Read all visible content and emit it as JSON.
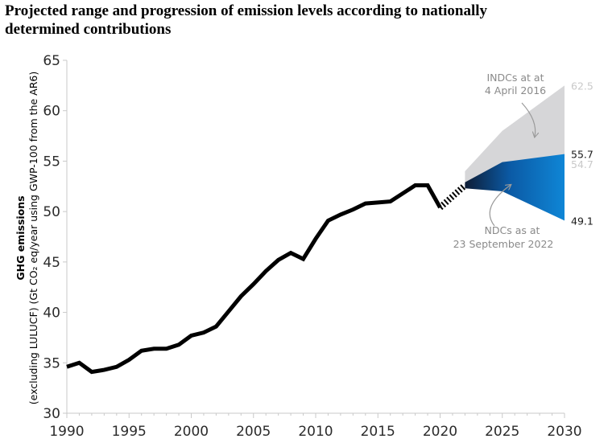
{
  "title": {
    "line1": "Projected range and progression of emission levels according to nationally",
    "line2": "determined contributions"
  },
  "colors": {
    "history": "#000000",
    "indc_range": "#d6d6d8",
    "ndc_dark": "#0e1d36",
    "ndc_mid": "#0b5aa5",
    "ndc_light": "#0f86d6",
    "axis": "#c9c9c9",
    "annotation": "#8a8a8a",
    "label_dark": "#1a1a1a",
    "label_light": "#c9c9c9"
  },
  "chart_data": {
    "type": "area",
    "title": "Projected range and progression of emission levels according to nationally determined contributions",
    "ylabel_line1": "GHG emissions",
    "ylabel_line2": "(excluding LULUCF) (Gt CO₂ eq/year using GWP-100 from the AR6)",
    "xlabel": "",
    "xlim": [
      1990,
      2030
    ],
    "ylim": [
      30,
      65
    ],
    "x_ticks": [
      "1990",
      "1995",
      "2000",
      "2005",
      "2010",
      "2015",
      "2020",
      "2025",
      "2030"
    ],
    "y_ticks": [
      "30",
      "35",
      "40",
      "45",
      "50",
      "55",
      "60",
      "65"
    ],
    "grid": false,
    "series": [
      {
        "type": "line",
        "x": [
          1990,
          1991,
          1992,
          1993,
          1994,
          1995,
          1996,
          1997,
          1998,
          1999,
          2000,
          2001,
          2002,
          2003,
          2004,
          2005,
          2006,
          2007,
          2008,
          2009,
          2010,
          2011,
          2012,
          2013,
          2014,
          2015,
          2016,
          2017,
          2018,
          2019,
          2020
        ],
        "y": [
          34.6,
          35.0,
          34.1,
          34.3,
          34.6,
          35.3,
          36.2,
          36.4,
          36.4,
          36.8,
          37.7,
          38.0,
          38.6,
          40.1,
          41.6,
          42.8,
          44.1,
          45.2,
          45.9,
          45.3,
          47.3,
          49.1,
          49.7,
          50.2,
          50.8,
          50.9,
          51.0,
          51.8,
          52.6,
          52.6,
          50.4
        ]
      },
      {
        "type": "dashed-line",
        "x": [
          2020,
          2021,
          2022
        ],
        "y": [
          50.4,
          51.5,
          52.6
        ]
      },
      {
        "type": "range",
        "x": [
          2022,
          2025,
          2030
        ],
        "upper": [
          54.0,
          58.0,
          62.5
        ],
        "lower": [
          52.5,
          52.1,
          49.1
        ]
      },
      {
        "type": "range",
        "x": [
          2022,
          2025,
          2030
        ],
        "upper": [
          52.9,
          54.9,
          55.7
        ],
        "lower": [
          52.3,
          52.0,
          49.1
        ]
      }
    ],
    "end_labels": [
      {
        "text": "62.5",
        "y": 62.5,
        "color": "#c9c9c9"
      },
      {
        "text": "55.7",
        "y": 55.7,
        "color": "#1a1a1a"
      },
      {
        "text": "54.7",
        "y": 54.7,
        "color": "#c9c9c9"
      },
      {
        "text": "49.1",
        "y": 49.1,
        "color": "#1a1a1a"
      }
    ],
    "annotations": [
      {
        "lines": [
          "INDCs at at",
          "4 April 2016"
        ]
      },
      {
        "lines": [
          "NDCs as at",
          "23 September 2022"
        ]
      }
    ]
  }
}
